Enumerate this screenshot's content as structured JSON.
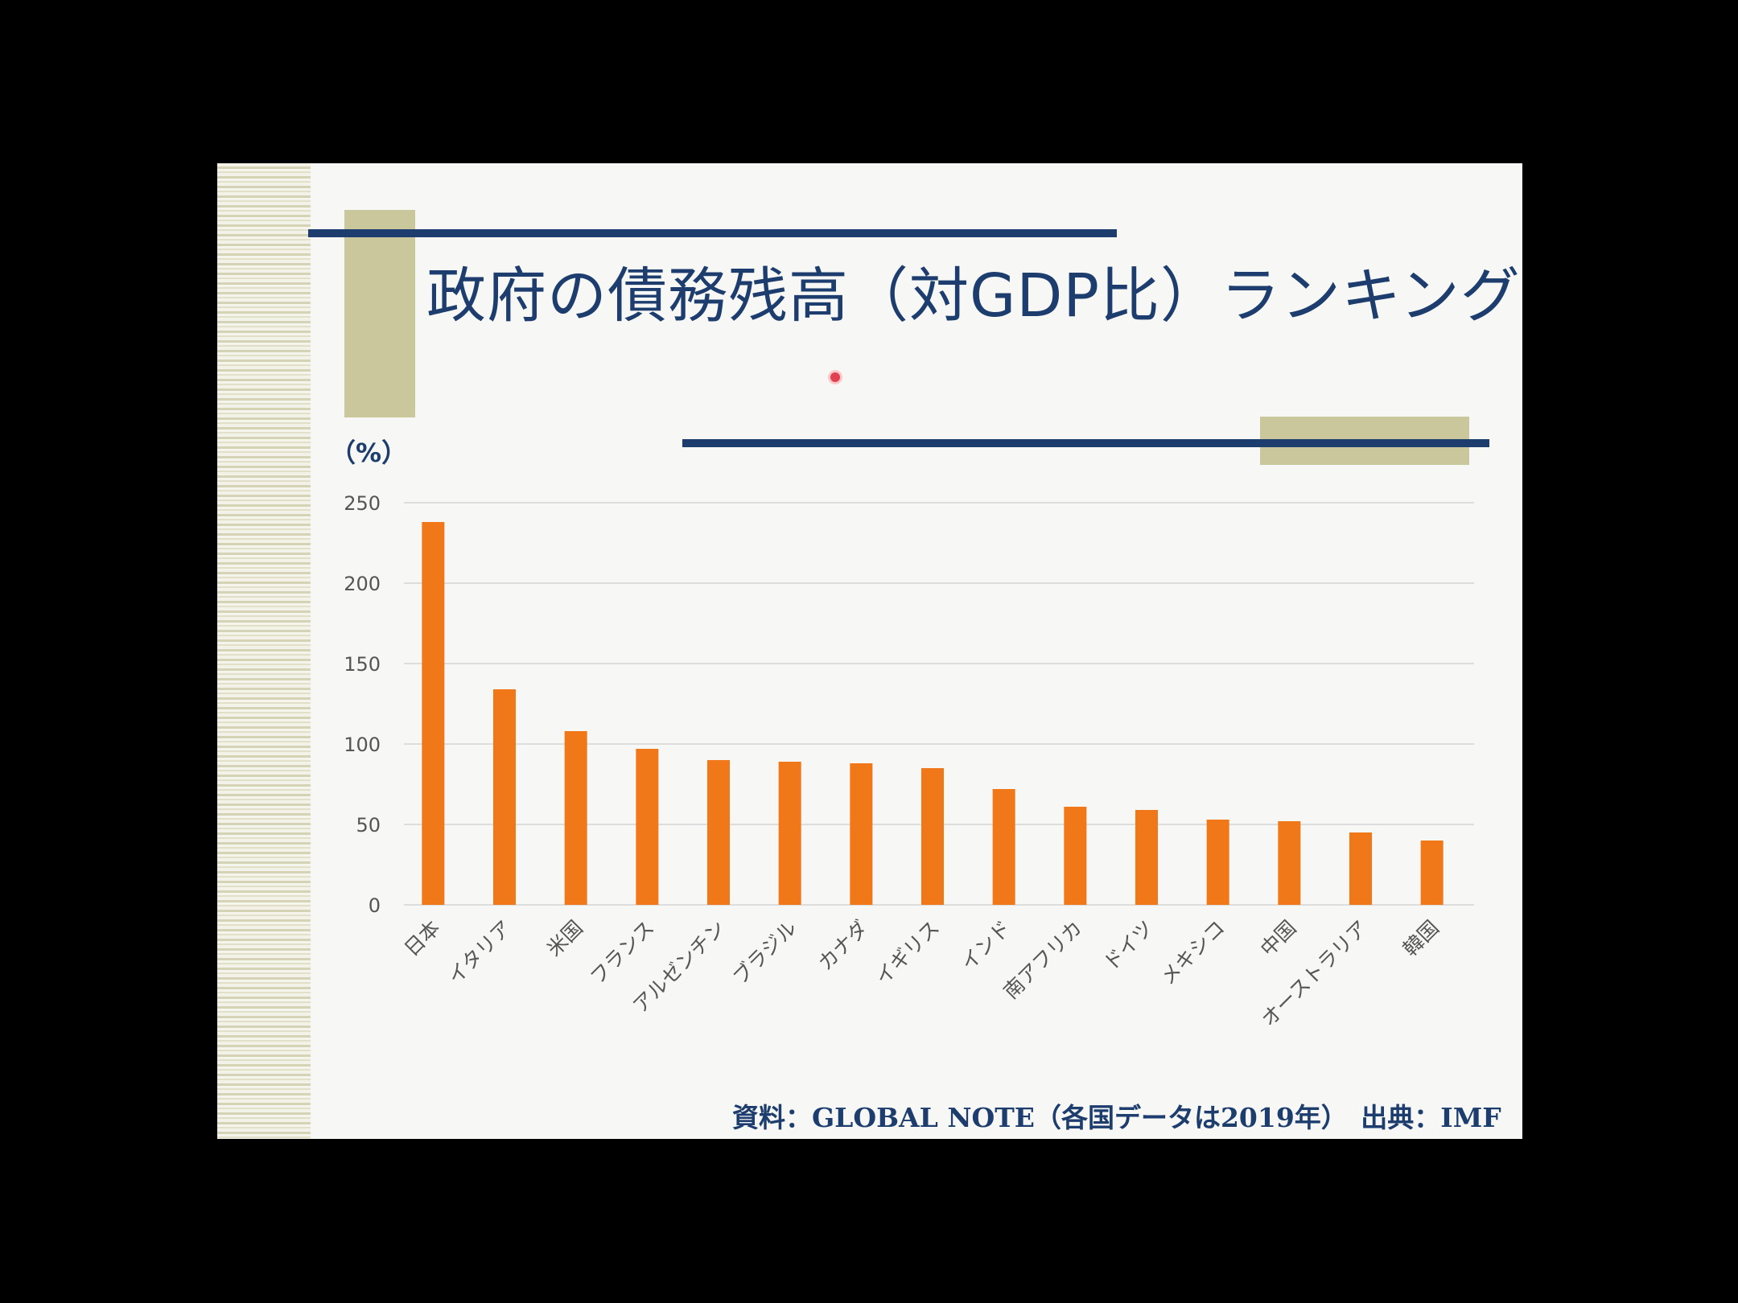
{
  "title": "政府の債務残高（対GDP比）ランキング",
  "source_note": "資料：GLOBAL NOTE（各国データは2019年）　出典：IMF",
  "colors": {
    "title": "#1c3d6e",
    "bar": "#f07818",
    "accent_olive": "#c9c79b",
    "gridline": "#dddddd"
  },
  "chart_data": {
    "type": "bar",
    "ylabel": "（%）",
    "ylim": [
      0,
      250
    ],
    "yticks": [
      0,
      50,
      100,
      150,
      200,
      250
    ],
    "grid": true,
    "categories": [
      "日本",
      "イタリア",
      "米国",
      "フランス",
      "アルゼンチン",
      "ブラジル",
      "カナダ",
      "イギリス",
      "インド",
      "南アフリカ",
      "ドイツ",
      "メキシコ",
      "中国",
      "オーストラリア",
      "韓国"
    ],
    "values": [
      238,
      134,
      108,
      97,
      90,
      89,
      88,
      85,
      72,
      61,
      59,
      53,
      52,
      45,
      40
    ]
  }
}
